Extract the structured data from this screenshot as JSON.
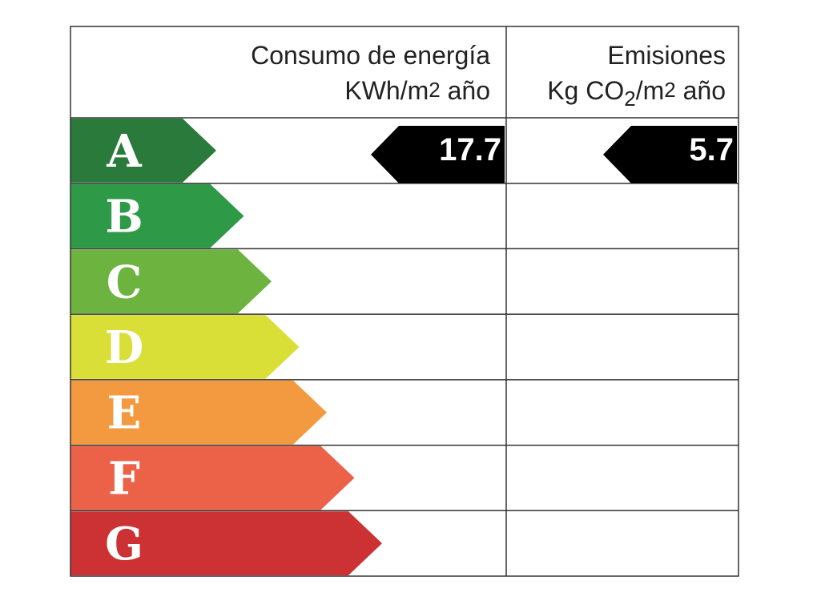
{
  "header": {
    "energy": {
      "title": "Consumo de energía",
      "unit": [
        {
          "text": "KWh/m"
        },
        {
          "text": "2",
          "pos": "sup"
        },
        {
          "text": " año"
        }
      ]
    },
    "emissions": {
      "title": "Emisiones",
      "unit": [
        {
          "text": "Kg CO"
        },
        {
          "text": "2",
          "pos": "sub"
        },
        {
          "text": "/m"
        },
        {
          "text": "2",
          "pos": "sup"
        },
        {
          "text": " año"
        }
      ]
    }
  },
  "classes": [
    {
      "letter": "A",
      "color": "#2a7a3b"
    },
    {
      "letter": "B",
      "color": "#2e9a48"
    },
    {
      "letter": "C",
      "color": "#6db33f"
    },
    {
      "letter": "D",
      "color": "#d9df37"
    },
    {
      "letter": "E",
      "color": "#f39a41"
    },
    {
      "letter": "F",
      "color": "#eb6249"
    },
    {
      "letter": "G",
      "color": "#cc3233"
    }
  ],
  "energy_rating": {
    "class": "A",
    "value": "17.7"
  },
  "emissions_rating": {
    "class": "A",
    "value": "5.7"
  }
}
